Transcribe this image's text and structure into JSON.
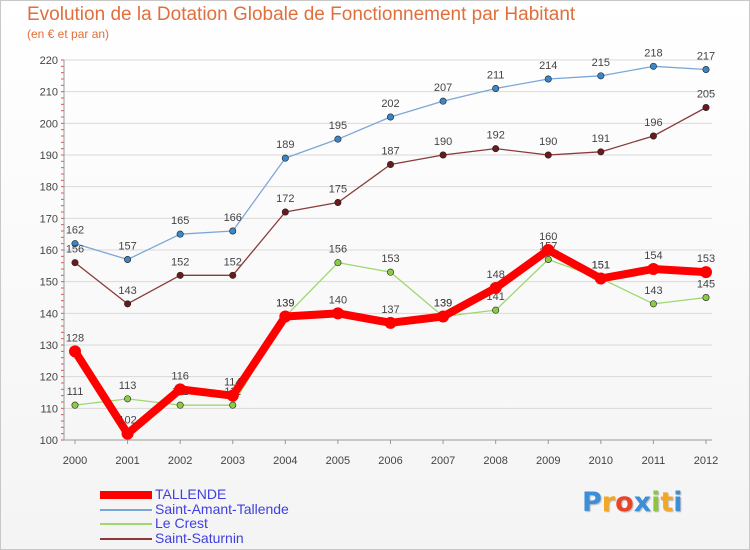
{
  "chart_data": {
    "type": "line",
    "title": "Evolution de la Dotation Globale de Fonctionnement par Habitant",
    "subtitle": "(en € et par an)",
    "xlabel": "",
    "ylabel": "",
    "ylim": [
      100,
      220
    ],
    "yticks": [
      100,
      110,
      120,
      130,
      140,
      150,
      160,
      170,
      180,
      190,
      200,
      210,
      220
    ],
    "categories": [
      "2000",
      "2001",
      "2002",
      "2003",
      "2004",
      "2005",
      "2006",
      "2007",
      "2008",
      "2009",
      "2010",
      "2011",
      "2012"
    ],
    "legend_position": "bottom-left",
    "series": [
      {
        "name": "Saint-Amant-Tallende",
        "color": "#7ba7d8",
        "marker": "#3a86c8",
        "width": 1.3,
        "values": [
          162,
          157,
          165,
          166,
          189,
          195,
          202,
          207,
          211,
          214,
          215,
          218,
          217
        ]
      },
      {
        "name": "Le Crest",
        "color": "#9ed86e",
        "marker": "#8ccc44",
        "width": 1.3,
        "values": [
          111,
          113,
          111,
          111,
          139,
          156,
          153,
          139,
          141,
          157,
          151,
          143,
          145
        ]
      },
      {
        "name": "Saint-Saturnin",
        "color": "#8a3a3a",
        "marker": "#6a1a1a",
        "width": 1.3,
        "values": [
          156,
          143,
          152,
          152,
          172,
          175,
          187,
          190,
          192,
          190,
          191,
          196,
          205
        ]
      },
      {
        "name": "TALLENDE",
        "color": "#ff0000",
        "marker": "#ff0000",
        "width": 8,
        "values": [
          128,
          102,
          116,
          114,
          139,
          140,
          137,
          139,
          148,
          160,
          151,
          154,
          153
        ]
      }
    ],
    "legend_order": [
      "TALLENDE",
      "Saint-Amant-Tallende",
      "Le Crest",
      "Saint-Saturnin"
    ]
  },
  "brand": {
    "letters": [
      "P",
      "r",
      "o",
      "x",
      "i",
      "t",
      "i"
    ],
    "colors": [
      "#3a8fd8",
      "#f5a623",
      "#e8442a",
      "#3a8fd8",
      "#8cc63f",
      "#f5a623",
      "#3a8fd8"
    ]
  }
}
